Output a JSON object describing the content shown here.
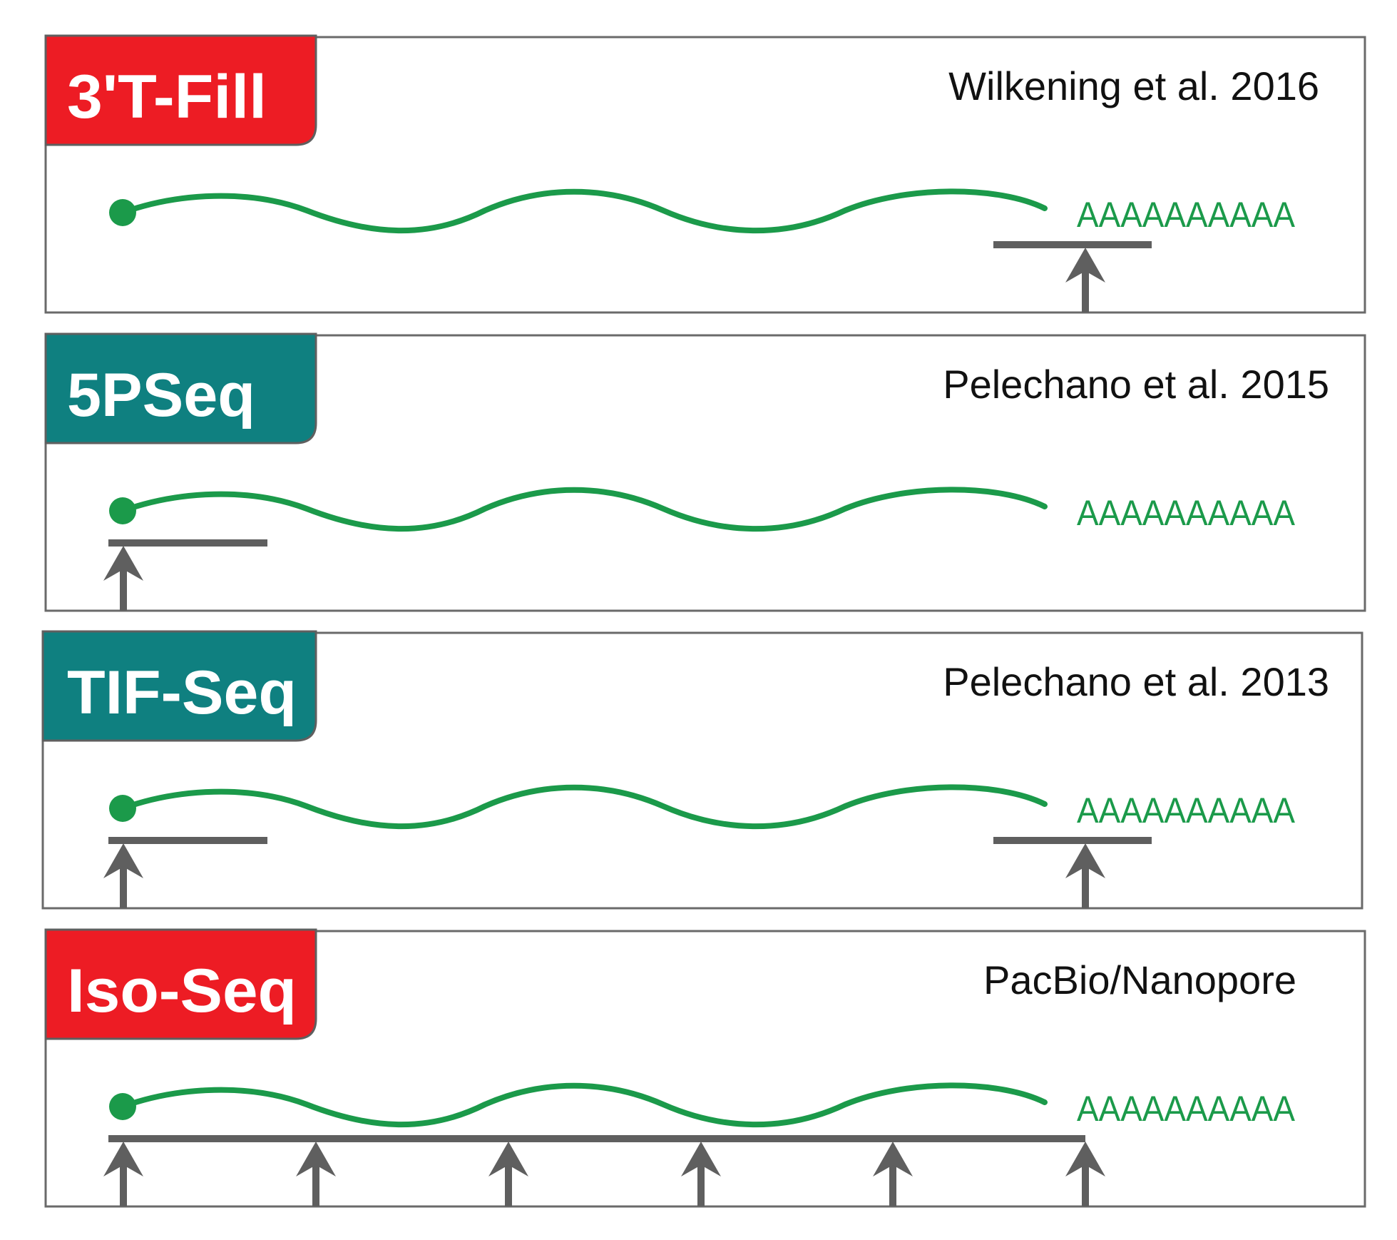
{
  "colors": {
    "red_tab": "#ed1c24",
    "teal_tab": "#0f8080",
    "rna": "#1b9a4a",
    "marker": "#5f5f5f",
    "panel_border": "#6a6a6a"
  },
  "panels": [
    {
      "method": "3'T-Fill",
      "tab_color": "#ed1c24",
      "citation": "Wilkening et al. 2016",
      "polya": "AAAAAAAAAA"
    },
    {
      "method": "5PSeq",
      "tab_color": "#0f8080",
      "citation": "Pelechano et al. 2015",
      "polya": "AAAAAAAAAA"
    },
    {
      "method": "TIF-Seq",
      "tab_color": "#0f8080",
      "citation": "Pelechano et al. 2013",
      "polya": "AAAAAAAAAA"
    },
    {
      "method": "Iso-Seq",
      "tab_color": "#ed1c24",
      "citation": "PacBio/Nanopore",
      "polya": "AAAAAAAAAA"
    }
  ]
}
